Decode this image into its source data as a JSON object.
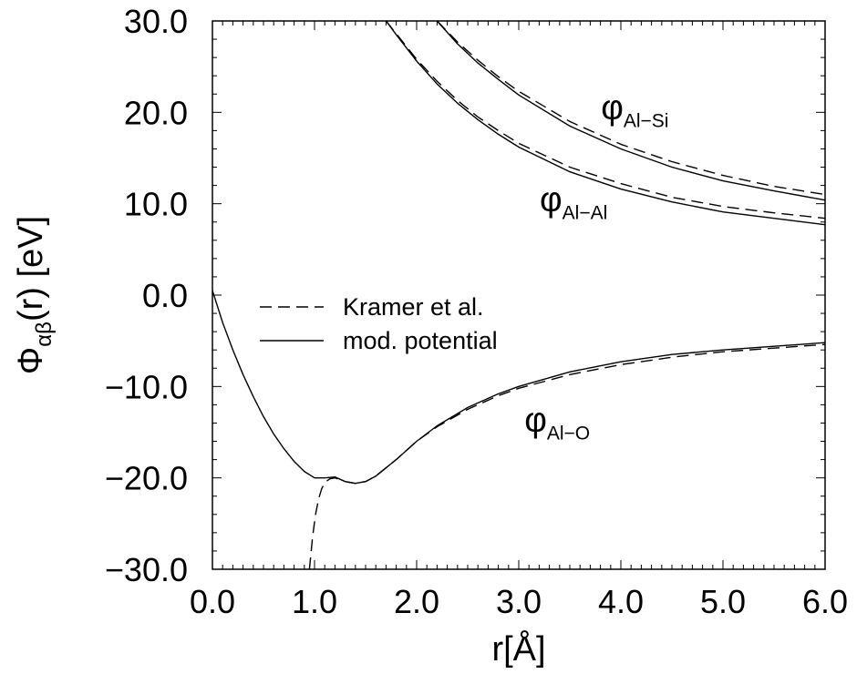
{
  "chart_data": {
    "type": "line",
    "xlabel": "r[Å]",
    "ylabel_main": "Φ",
    "ylabel_sub": "αβ",
    "ylabel_rest": "(r) [eV]",
    "xlim": [
      0.0,
      6.0
    ],
    "ylim": [
      -30.0,
      30.0
    ],
    "xticks": [
      0.0,
      1.0,
      2.0,
      3.0,
      4.0,
      5.0,
      6.0
    ],
    "xtick_labels": [
      "0.0",
      "1.0",
      "2.0",
      "3.0",
      "4.0",
      "5.0",
      "6.0"
    ],
    "yticks": [
      -30.0,
      -20.0,
      -10.0,
      0.0,
      10.0,
      20.0,
      30.0
    ],
    "ytick_labels": [
      "−30.0",
      "−20.0",
      "−10.0",
      "0.0",
      "10.0",
      "20.0",
      "30.0"
    ],
    "grid": false,
    "legend_position": "center-left",
    "legend": [
      {
        "label": "Kramer et al.",
        "style": "dashed"
      },
      {
        "label": "mod. potential",
        "style": "solid"
      }
    ],
    "annotations": [
      {
        "symbol": "φ",
        "sub": "Al−Si",
        "x": 3.85,
        "y": 19.3
      },
      {
        "symbol": "φ",
        "sub": "Al−Al",
        "x": 3.25,
        "y": 9.2
      },
      {
        "symbol": "φ",
        "sub": "Al−O",
        "x": 3.1,
        "y": -14.9
      }
    ],
    "series": [
      {
        "group": "Al−Si",
        "style": "solid",
        "x": [
          2.2,
          2.4,
          2.6,
          2.8,
          3.0,
          3.5,
          4.0,
          4.5,
          5.0,
          5.5,
          6.0
        ],
        "y": [
          30.0,
          27.5,
          25.4,
          23.6,
          21.9,
          18.5,
          16.0,
          14.0,
          12.5,
          11.4,
          10.4
        ]
      },
      {
        "group": "Al−Si",
        "style": "dashed",
        "x": [
          2.2,
          2.4,
          2.6,
          2.8,
          3.0,
          3.5,
          4.0,
          4.5,
          5.0,
          5.5,
          6.0
        ],
        "y": [
          30.0,
          27.7,
          25.7,
          23.9,
          22.3,
          19.0,
          16.5,
          14.6,
          13.1,
          11.9,
          11.0
        ]
      },
      {
        "group": "Al−Al",
        "style": "solid",
        "x": [
          1.7,
          1.8,
          2.0,
          2.2,
          2.4,
          2.6,
          2.8,
          3.0,
          3.5,
          4.0,
          4.5,
          5.0,
          5.5,
          6.0
        ],
        "y": [
          30.0,
          28.5,
          25.6,
          23.1,
          21.0,
          19.2,
          17.6,
          16.2,
          13.5,
          11.6,
          10.2,
          9.1,
          8.4,
          7.7
        ]
      },
      {
        "group": "Al−Al",
        "style": "dashed",
        "x": [
          1.7,
          1.8,
          2.0,
          2.2,
          2.4,
          2.6,
          2.8,
          3.0,
          3.5,
          4.0,
          4.5,
          5.0,
          5.5,
          6.0
        ],
        "y": [
          30.0,
          28.6,
          25.8,
          23.4,
          21.3,
          19.5,
          18.0,
          16.6,
          14.0,
          12.2,
          10.7,
          9.7,
          9.0,
          8.4
        ]
      },
      {
        "group": "Al−O",
        "style": "solid",
        "x": [
          0.0,
          0.1,
          0.2,
          0.3,
          0.4,
          0.5,
          0.6,
          0.7,
          0.8,
          0.9,
          1.0,
          1.1,
          1.2,
          1.3,
          1.4,
          1.5,
          1.6,
          1.8,
          2.0,
          2.2,
          2.5,
          2.8,
          3.0,
          3.5,
          4.0,
          4.5,
          5.0,
          5.5,
          6.0
        ],
        "y": [
          0.5,
          -3.0,
          -6.0,
          -8.7,
          -11.1,
          -13.3,
          -15.2,
          -16.8,
          -18.2,
          -19.3,
          -20.0,
          -20.0,
          -19.9,
          -20.4,
          -20.6,
          -20.4,
          -19.8,
          -18.0,
          -16.0,
          -14.3,
          -12.3,
          -10.8,
          -10.0,
          -8.4,
          -7.3,
          -6.5,
          -6.0,
          -5.6,
          -5.2
        ]
      },
      {
        "group": "Al−O",
        "style": "dashed",
        "x": [
          0.95,
          0.98,
          1.01,
          1.04,
          1.07,
          1.1,
          1.15,
          1.2,
          1.3,
          1.4,
          1.5,
          1.6,
          1.8,
          2.0,
          2.2,
          2.5,
          2.8,
          3.0,
          3.5,
          4.0,
          4.5,
          5.0,
          5.5,
          6.0
        ],
        "y": [
          -30.0,
          -26.5,
          -24.0,
          -22.3,
          -21.2,
          -20.5,
          -20.1,
          -20.0,
          -20.4,
          -20.6,
          -20.4,
          -19.8,
          -18.0,
          -16.0,
          -14.4,
          -12.5,
          -11.0,
          -10.2,
          -8.7,
          -7.6,
          -6.8,
          -6.2,
          -5.8,
          -5.4
        ]
      }
    ]
  }
}
